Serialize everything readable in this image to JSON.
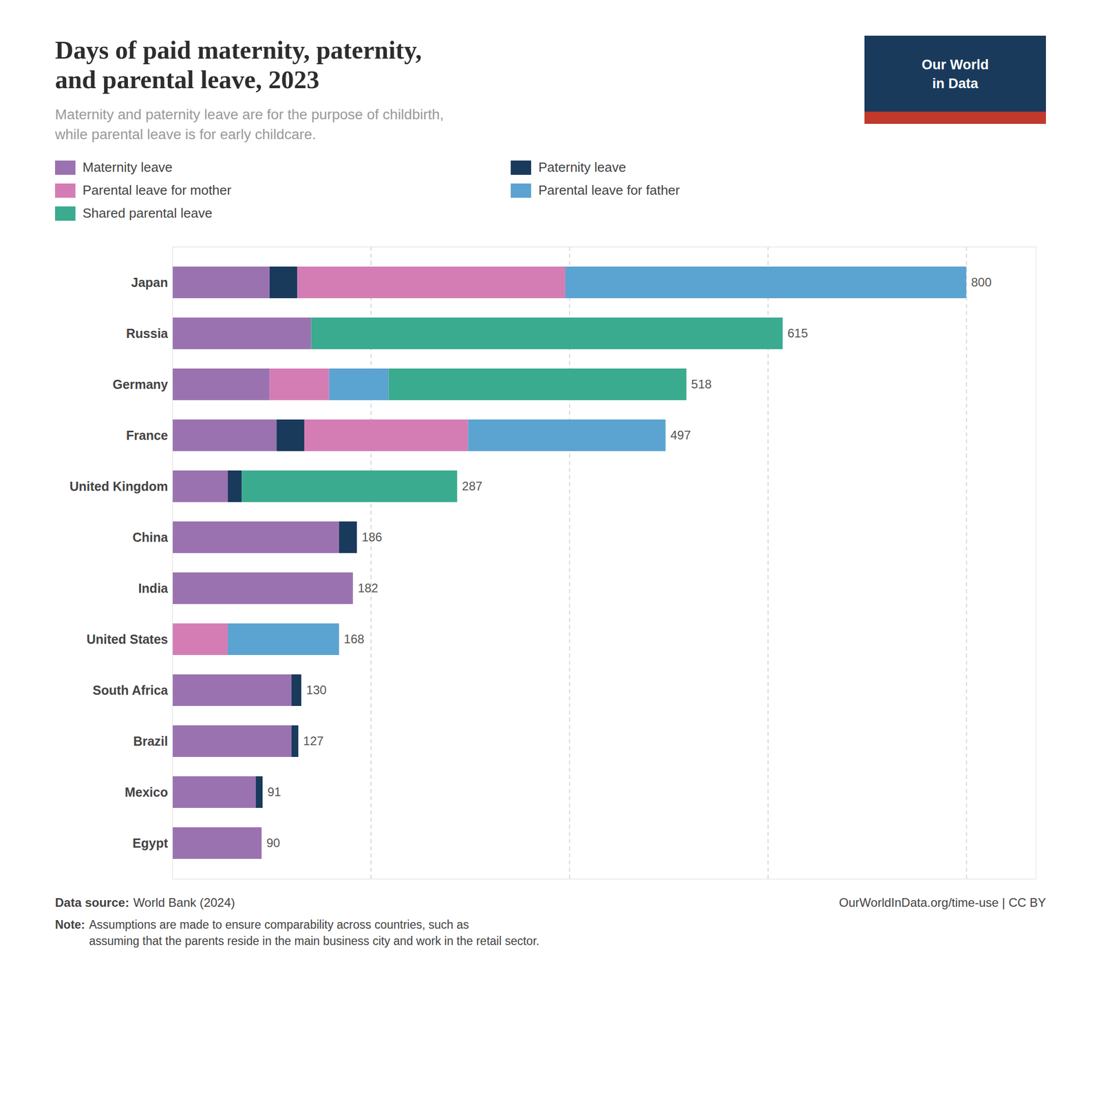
{
  "chart_data": {
    "type": "bar",
    "orientation": "horizontal",
    "stacked": true,
    "title": "Days of paid maternity, paternity,\nand parental leave, 2023",
    "subtitle": "Maternity and paternity leave are for the purpose of childbirth,\nwhile parental leave is for early childcare.",
    "categories": [
      "Japan",
      "Russia",
      "Germany",
      "France",
      "United Kingdom",
      "China",
      "India",
      "United States",
      "South Africa",
      "Brazil",
      "Mexico",
      "Egypt"
    ],
    "series": [
      {
        "name": "Maternity leave",
        "color": "#9B72B0",
        "values": [
          98,
          140,
          98,
          105,
          56,
          168,
          182,
          0,
          120,
          120,
          84,
          90
        ]
      },
      {
        "name": "Paternity leave",
        "color": "#1a3a5c",
        "values": [
          28,
          0,
          0,
          28,
          14,
          18,
          0,
          0,
          10,
          7,
          7,
          0
        ]
      },
      {
        "name": "Parental leave for mother",
        "color": "#d47db5",
        "values": [
          270,
          0,
          60,
          165,
          0,
          0,
          0,
          56,
          0,
          0,
          0,
          0
        ]
      },
      {
        "name": "Parental leave for father",
        "color": "#5ba3d0",
        "values": [
          404,
          0,
          60,
          199,
          0,
          0,
          0,
          112,
          0,
          0,
          0,
          0
        ]
      },
      {
        "name": "Shared parental leave",
        "color": "#3aab8e",
        "values": [
          0,
          475,
          300,
          0,
          217,
          0,
          0,
          0,
          0,
          0,
          0,
          0
        ]
      }
    ],
    "totals": [
      800,
      615,
      518,
      497,
      287,
      186,
      182,
      168,
      130,
      127,
      91,
      90
    ],
    "xlim": [
      0,
      870
    ],
    "xticks": [
      200,
      400,
      600,
      800
    ],
    "grid": true,
    "tick_labels": "y",
    "legend": "top",
    "annotations": [
      "Our World",
      "in Data",
      "Data source:",
      "World Bank (2024)",
      "OurWorldInData.org/time-use | CC BY",
      "Note:",
      "Assumptions are made to ensure comparability across countries, such as\nassuming that the parents reside in the main business city and work in the retail sector."
    ]
  }
}
